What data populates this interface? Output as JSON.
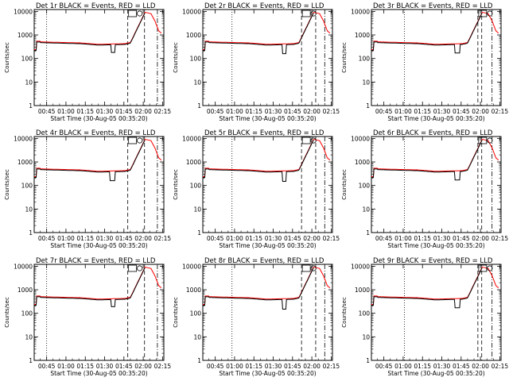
{
  "chart_data": {
    "type": "line",
    "scale": "log",
    "ylim": [
      1,
      12000
    ],
    "xlim_minutes": [
      35.33,
      136.0
    ],
    "x_tick_minutes": [
      45,
      60,
      75,
      90,
      105,
      120,
      135
    ],
    "x_tick_labels": [
      "00:45",
      "01:00",
      "01:15",
      "01:30",
      "01:45",
      "02:00",
      "02:15"
    ],
    "y_ticks": [
      1,
      10,
      100,
      1000,
      10000
    ],
    "y_tick_labels": [
      "1",
      "10",
      "100",
      "1000",
      "10000"
    ],
    "ylabel": "Counts/sec",
    "xlabel": "Start Time (30-Aug-05 00:35:20)",
    "colors": {
      "events": "#000000",
      "lld": "#ff0000"
    },
    "panels": [
      {
        "title": "Det 1r BLACK = Events, RED = LLD",
        "dip": [
          95,
          98
        ],
        "dip_min": 180,
        "dotted": 45,
        "dashed": [
          108,
          121
        ],
        "dashdot": 131
      },
      {
        "title": "Det 2r BLACK = Events, RED = LLD",
        "dip": [
          97,
          100
        ],
        "dip_min": 160,
        "dotted": 58,
        "dashed": [
          112,
          123
        ],
        "dashdot": 130
      },
      {
        "title": "Det 3r BLACK = Events, RED = LLD",
        "dip": [
          100,
          104
        ],
        "dip_min": 170,
        "dotted": 61,
        "dashed": [
          118,
          121
        ],
        "dashdot": 129
      },
      {
        "title": "Det 4r BLACK = Events, RED = LLD",
        "dip": [
          94,
          98
        ],
        "dip_min": 160,
        "dotted": 45,
        "dashed": [
          108,
          121
        ],
        "dashdot": 131
      },
      {
        "title": "Det 5r BLACK = Events, RED = LLD",
        "dip": [
          97,
          100
        ],
        "dip_min": 150,
        "dotted": 58,
        "dashed": [
          112,
          123
        ],
        "dashdot": 130
      },
      {
        "title": "Det 6r BLACK = Events, RED = LLD",
        "dip": [
          100,
          104
        ],
        "dip_min": 170,
        "dotted": 61,
        "dashed": [
          118,
          121
        ],
        "dashdot": 129
      },
      {
        "title": "Det 7r BLACK = Events, RED = LLD",
        "dip": [
          95,
          98
        ],
        "dip_min": 190,
        "dotted": 45,
        "dashed": [
          108,
          121
        ],
        "dashdot": 131
      },
      {
        "title": "Det 8r BLACK = Events, RED = LLD",
        "dip": [
          97,
          100
        ],
        "dip_min": 150,
        "dotted": 58,
        "dashed": [
          112,
          123
        ],
        "dashdot": 130
      },
      {
        "title": "Det 9r BLACK = Events, RED = LLD",
        "dip": [
          100,
          104
        ],
        "dip_min": 170,
        "dotted": 61,
        "dashed": [
          118,
          121
        ],
        "dashdot": 129
      }
    ]
  }
}
